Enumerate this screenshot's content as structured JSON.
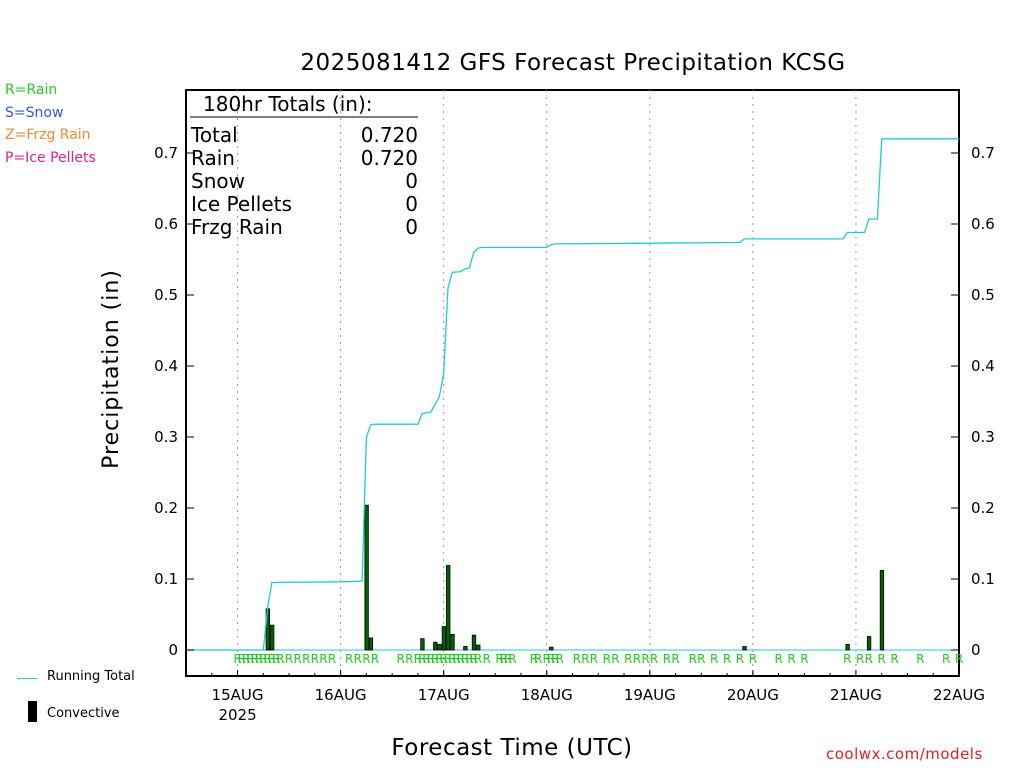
{
  "chart_data": {
    "type": "bar",
    "title": "2025081412 GFS Forecast Precipitation KCSG",
    "ylabel": "Precipitation (in)",
    "xlabel": "Forecast Time (UTC)",
    "ylim": [
      0,
      0.78
    ],
    "yticks": [
      "0",
      "0.1",
      "0.2",
      "0.3",
      "0.4",
      "0.5",
      "0.6",
      "0.7"
    ],
    "x_start": "2025-08-14 12Z",
    "x_end": "2025-08-22 00Z",
    "x_day_labels": [
      {
        "label": "15AUG",
        "sub": "2025"
      },
      {
        "label": "16AUG",
        "sub": ""
      },
      {
        "label": "17AUG",
        "sub": ""
      },
      {
        "label": "18AUG",
        "sub": ""
      },
      {
        "label": "19AUG",
        "sub": ""
      },
      {
        "label": "20AUG",
        "sub": ""
      },
      {
        "label": "21AUG",
        "sub": ""
      },
      {
        "label": "22AUG",
        "sub": ""
      }
    ],
    "grid": "vertical dotted at 00Z",
    "precip_type_legend": [
      {
        "text": "R=Rain",
        "color": "#22cc22"
      },
      {
        "text": "S=Snow",
        "color": "#3355ee"
      },
      {
        "text": "Z=Frzg Rain",
        "color": "#ee8833"
      },
      {
        "text": "P=Ice Pellets",
        "color": "#dd2288"
      }
    ],
    "totals_box": {
      "heading": "180hr Totals (in):",
      "rows": [
        {
          "name": "Total",
          "value": "0.720"
        },
        {
          "name": "Rain",
          "value": "0.720"
        },
        {
          "name": "Snow",
          "value": "0"
        },
        {
          "name": "Ice Pellets",
          "value": "0"
        },
        {
          "name": "Frzg Rain",
          "value": "0"
        }
      ]
    },
    "series": [
      {
        "name": "Running Total",
        "color": "#22cccc",
        "points": [
          [
            "15AUG 00Z",
            0.0
          ],
          [
            "15AUG 06Z",
            0.0
          ],
          [
            "15AUG 07Z",
            0.06
          ],
          [
            "15AUG 08Z",
            0.095
          ],
          [
            "16AUG 00Z",
            0.096
          ],
          [
            "16AUG 05Z",
            0.097
          ],
          [
            "16AUG 06Z",
            0.3
          ],
          [
            "16AUG 07Z",
            0.317
          ],
          [
            "16AUG 08Z",
            0.318
          ],
          [
            "16AUG 18Z",
            0.318
          ],
          [
            "16AUG 19Z",
            0.333
          ],
          [
            "16AUG 21Z",
            0.335
          ],
          [
            "16AUG 22Z",
            0.346
          ],
          [
            "16AUG 23Z",
            0.357
          ],
          [
            "17AUG 00Z",
            0.39
          ],
          [
            "17AUG 01Z",
            0.51
          ],
          [
            "17AUG 02Z",
            0.532
          ],
          [
            "17AUG 04Z",
            0.533
          ],
          [
            "17AUG 05Z",
            0.537
          ],
          [
            "17AUG 06Z",
            0.538
          ],
          [
            "17AUG 07Z",
            0.56
          ],
          [
            "17AUG 08Z",
            0.566
          ],
          [
            "17AUG 09Z",
            0.567
          ],
          [
            "18AUG 00Z",
            0.567
          ],
          [
            "18AUG 01Z",
            0.571
          ],
          [
            "18AUG 02Z",
            0.572
          ],
          [
            "19AUG 00Z",
            0.573
          ],
          [
            "19AUG 21Z",
            0.574
          ],
          [
            "19AUG 22Z",
            0.579
          ],
          [
            "20AUG 00Z",
            0.579
          ],
          [
            "20AUG 21Z",
            0.579
          ],
          [
            "20AUG 22Z",
            0.588
          ],
          [
            "21AUG 02Z",
            0.588
          ],
          [
            "21AUG 03Z",
            0.607
          ],
          [
            "21AUG 05Z",
            0.607
          ],
          [
            "21AUG 06Z",
            0.72
          ],
          [
            "22AUG 00Z",
            0.72
          ]
        ]
      },
      {
        "name": "Convective",
        "color": "#000000",
        "bars": [
          [
            "15AUG 07Z",
            0.058
          ],
          [
            "15AUG 08Z",
            0.035
          ],
          [
            "16AUG 06Z",
            0.204
          ],
          [
            "16AUG 07Z",
            0.017
          ],
          [
            "16AUG 19Z",
            0.016
          ],
          [
            "16AUG 22Z",
            0.011
          ],
          [
            "16AUG 23Z",
            0.008
          ],
          [
            "17AUG 00Z",
            0.033
          ],
          [
            "17AUG 01Z",
            0.119
          ],
          [
            "17AUG 02Z",
            0.022
          ],
          [
            "17AUG 05Z",
            0.005
          ],
          [
            "17AUG 07Z",
            0.021
          ],
          [
            "17AUG 08Z",
            0.007
          ],
          [
            "18AUG 01Z",
            0.004
          ],
          [
            "19AUG 22Z",
            0.005
          ],
          [
            "20AUG 22Z",
            0.008
          ],
          [
            "21AUG 03Z",
            0.019
          ],
          [
            "21AUG 06Z",
            0.112
          ]
        ]
      }
    ],
    "precip_type_marks": {
      "label": "R",
      "hours": [
        "15AUG 00Z",
        "15AUG 01Z",
        "15AUG 02Z",
        "15AUG 03Z",
        "15AUG 04Z",
        "15AUG 05Z",
        "15AUG 06Z",
        "15AUG 07Z",
        "15AUG 08Z",
        "15AUG 09Z",
        "15AUG 10Z",
        "15AUG 12Z",
        "15AUG 14Z",
        "15AUG 16Z",
        "15AUG 18Z",
        "15AUG 20Z",
        "15AUG 22Z",
        "16AUG 02Z",
        "16AUG 04Z",
        "16AUG 06Z",
        "16AUG 08Z",
        "16AUG 14Z",
        "16AUG 16Z",
        "16AUG 18Z",
        "16AUG 19Z",
        "16AUG 20Z",
        "16AUG 21Z",
        "16AUG 22Z",
        "16AUG 23Z",
        "17AUG 00Z",
        "17AUG 01Z",
        "17AUG 02Z",
        "17AUG 03Z",
        "17AUG 04Z",
        "17AUG 05Z",
        "17AUG 06Z",
        "17AUG 07Z",
        "17AUG 08Z",
        "17AUG 10Z",
        "17AUG 13Z",
        "17AUG 14Z",
        "17AUG 15Z",
        "17AUG 16Z",
        "17AUG 21Z",
        "17AUG 22Z",
        "18AUG 00Z",
        "18AUG 01Z",
        "18AUG 02Z",
        "18AUG 03Z",
        "18AUG 07Z",
        "18AUG 09Z",
        "18AUG 11Z",
        "18AUG 14Z",
        "18AUG 16Z",
        "18AUG 19Z",
        "18AUG 21Z",
        "18AUG 23Z",
        "19AUG 01Z",
        "19AUG 04Z",
        "19AUG 06Z",
        "19AUG 10Z",
        "19AUG 12Z",
        "19AUG 15Z",
        "19AUG 18Z",
        "19AUG 21Z",
        "20AUG 00Z",
        "20AUG 06Z",
        "20AUG 09Z",
        "20AUG 12Z",
        "20AUG 22Z",
        "21AUG 01Z",
        "21AUG 03Z",
        "21AUG 06Z",
        "21AUG 09Z",
        "21AUG 15Z",
        "21AUG 21Z",
        "21AUG 24Z"
      ]
    },
    "legend_items": {
      "running_total": "Running Total",
      "convective": "Convective"
    },
    "credit": "coolwx.com/models"
  }
}
